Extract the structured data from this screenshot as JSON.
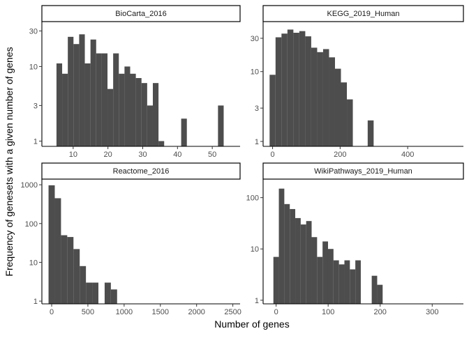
{
  "chart_data": {
    "type": "bar",
    "xlabel": "Number of genes",
    "ylabel": "Frequency of genesets with a given number of genes",
    "y_scale": "log10",
    "panels": [
      {
        "title": "BioCarta_2016",
        "xlim": [
          1,
          58
        ],
        "ylim": [
          0.85,
          40
        ],
        "xticks": [
          10,
          20,
          30,
          40,
          50
        ],
        "xtick_labels": [
          "10",
          "20",
          "30",
          "40",
          "50"
        ],
        "yticks": [
          1,
          3,
          10,
          30
        ],
        "ytick_labels": [
          "1",
          "3",
          "10",
          "30"
        ],
        "bin_width": 1.63,
        "bins": [
          {
            "x0": 5.2,
            "count": 11
          },
          {
            "x0": 6.83,
            "count": 8
          },
          {
            "x0": 8.46,
            "count": 25
          },
          {
            "x0": 10.09,
            "count": 20
          },
          {
            "x0": 11.72,
            "count": 27
          },
          {
            "x0": 13.35,
            "count": 11
          },
          {
            "x0": 14.98,
            "count": 23
          },
          {
            "x0": 16.61,
            "count": 15
          },
          {
            "x0": 18.24,
            "count": 15
          },
          {
            "x0": 19.87,
            "count": 5
          },
          {
            "x0": 21.5,
            "count": 15
          },
          {
            "x0": 23.13,
            "count": 8
          },
          {
            "x0": 24.76,
            "count": 10
          },
          {
            "x0": 26.39,
            "count": 8
          },
          {
            "x0": 28.02,
            "count": 7
          },
          {
            "x0": 29.65,
            "count": 6
          },
          {
            "x0": 31.28,
            "count": 3
          },
          {
            "x0": 32.91,
            "count": 6
          },
          {
            "x0": 34.54,
            "count": 1
          },
          {
            "x0": 41.06,
            "count": 2
          },
          {
            "x0": 51.65,
            "count": 3
          }
        ]
      },
      {
        "title": "KEGG_2019_Human",
        "xlim": [
          -28,
          565
        ],
        "ylim": [
          0.85,
          52
        ],
        "xticks": [
          0,
          200,
          400
        ],
        "xtick_labels": [
          "0",
          "200",
          "400"
        ],
        "yticks": [
          1,
          3,
          10,
          30
        ],
        "ytick_labels": [
          "1",
          "3",
          "10",
          "30"
        ],
        "bin_width": 17.6,
        "bins": [
          {
            "x0": -8.8,
            "count": 9
          },
          {
            "x0": 8.8,
            "count": 31
          },
          {
            "x0": 26.4,
            "count": 35
          },
          {
            "x0": 44.0,
            "count": 40
          },
          {
            "x0": 61.6,
            "count": 36
          },
          {
            "x0": 79.2,
            "count": 38
          },
          {
            "x0": 96.8,
            "count": 32
          },
          {
            "x0": 114.4,
            "count": 22
          },
          {
            "x0": 132.0,
            "count": 19
          },
          {
            "x0": 149.6,
            "count": 21
          },
          {
            "x0": 167.2,
            "count": 16
          },
          {
            "x0": 184.8,
            "count": 11
          },
          {
            "x0": 202.4,
            "count": 7
          },
          {
            "x0": 220.0,
            "count": 4
          },
          {
            "x0": 281.6,
            "count": 2
          }
        ]
      },
      {
        "title": "Reactome_2016",
        "xlim": [
          -135,
          2600
        ],
        "ylim": [
          0.85,
          1400
        ],
        "xticks": [
          0,
          500,
          1000,
          1500,
          2000,
          2500
        ],
        "xtick_labels": [
          "0",
          "500",
          "1000",
          "1500",
          "2000",
          "2500"
        ],
        "yticks": [
          1,
          10,
          100,
          1000
        ],
        "ytick_labels": [
          "1",
          "10",
          "100",
          "1000"
        ],
        "bin_width": 86,
        "bins": [
          {
            "x0": -43,
            "count": 970
          },
          {
            "x0": 43,
            "count": 450
          },
          {
            "x0": 129,
            "count": 50
          },
          {
            "x0": 215,
            "count": 45
          },
          {
            "x0": 301,
            "count": 22
          },
          {
            "x0": 387,
            "count": 8
          },
          {
            "x0": 473,
            "count": 3
          },
          {
            "x0": 559,
            "count": 3
          },
          {
            "x0": 731,
            "count": 3
          },
          {
            "x0": 817,
            "count": 2
          }
        ]
      },
      {
        "title": "WikiPathways_2019_Human",
        "xlim": [
          -25,
          360
        ],
        "ylim": [
          0.85,
          230
        ],
        "xticks": [
          0,
          100,
          200,
          300
        ],
        "xtick_labels": [
          "0",
          "100",
          "200",
          "300"
        ],
        "yticks": [
          1,
          10,
          100
        ],
        "ytick_labels": [
          "1",
          "10",
          "100"
        ],
        "bin_width": 10.5,
        "bins": [
          {
            "x0": -5.25,
            "count": 7
          },
          {
            "x0": 5.25,
            "count": 150
          },
          {
            "x0": 15.75,
            "count": 75
          },
          {
            "x0": 26.25,
            "count": 60
          },
          {
            "x0": 36.75,
            "count": 40
          },
          {
            "x0": 47.25,
            "count": 30
          },
          {
            "x0": 57.75,
            "count": 35
          },
          {
            "x0": 68.25,
            "count": 17
          },
          {
            "x0": 78.75,
            "count": 7
          },
          {
            "x0": 89.25,
            "count": 14
          },
          {
            "x0": 99.75,
            "count": 10
          },
          {
            "x0": 110.25,
            "count": 6
          },
          {
            "x0": 120.75,
            "count": 5
          },
          {
            "x0": 131.25,
            "count": 6
          },
          {
            "x0": 141.75,
            "count": 4
          },
          {
            "x0": 152.25,
            "count": 6
          },
          {
            "x0": 183.75,
            "count": 3
          },
          {
            "x0": 194.25,
            "count": 2
          }
        ]
      }
    ]
  }
}
